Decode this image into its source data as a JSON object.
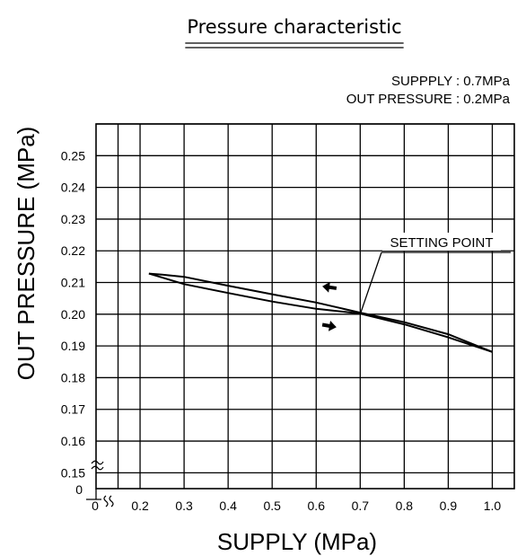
{
  "chart_data": {
    "type": "line",
    "title": "Pressure characteristic",
    "conditions": [
      "SUPPPLY : 0.7MPa",
      "OUT PRESSURE : 0.2MPa"
    ],
    "xlabel": "SUPPLY (MPa)",
    "ylabel": "OUT PRESSURE (MPa)",
    "xlim": [
      0,
      1.05
    ],
    "ylim": [
      0.14,
      0.26
    ],
    "axis_break": "both axes broken near origin",
    "x_tick_labels": [
      "0",
      "0.2",
      "0.3",
      "0.4",
      "0.5",
      "0.6",
      "0.7",
      "0.8",
      "0.9",
      "1.0"
    ],
    "y_tick_labels": [
      "0",
      "0.15",
      "0.16",
      "0.17",
      "0.18",
      "0.19",
      "0.20",
      "0.21",
      "0.22",
      "0.23",
      "0.24",
      "0.25"
    ],
    "grid": true,
    "series": [
      {
        "direction": "increasing supply (arrow pointing right)",
        "x": [
          0.22,
          0.3,
          0.4,
          0.5,
          0.6,
          0.7,
          0.8,
          0.9,
          1.0
        ],
        "y": [
          0.2128,
          0.2095,
          0.2067,
          0.204,
          0.2017,
          0.2002,
          0.1968,
          0.1927,
          0.1881
        ]
      },
      {
        "direction": "decreasing supply (arrow pointing left)",
        "x": [
          1.0,
          0.9,
          0.8,
          0.7,
          0.6,
          0.5,
          0.4,
          0.3,
          0.25,
          0.22
        ],
        "y": [
          0.1881,
          0.1937,
          0.1975,
          0.2005,
          0.2037,
          0.2063,
          0.209,
          0.2118,
          0.2125,
          0.2128
        ]
      }
    ],
    "annotations": [
      {
        "text": "SETTING POINT",
        "x": 0.7,
        "y": 0.2
      }
    ]
  }
}
